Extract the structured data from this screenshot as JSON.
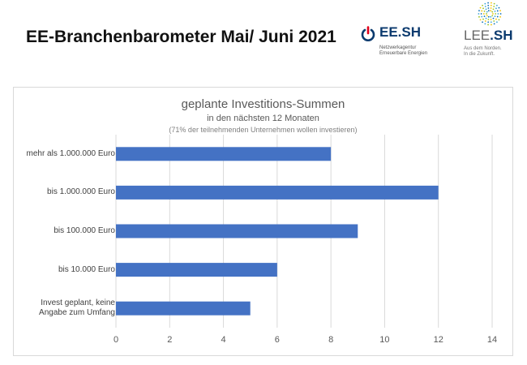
{
  "slide": {
    "title": "EE-Branchenbarometer Mai/ Juni 2021"
  },
  "logos": {
    "eesh": {
      "name": "EE.SH",
      "subtitle_line1": "Netzwerkagentur",
      "subtitle_line2": "Erneuerbare Energien"
    },
    "leesh": {
      "name_part1": "LEE",
      "name_part2": ".SH",
      "tagline_line1": "Aus dem Norden.",
      "tagline_line2": "In die Zukunft."
    }
  },
  "chart_data": {
    "type": "bar",
    "orientation": "horizontal",
    "title": "geplante Investitions-Summen",
    "subtitle": "in den nächsten 12 Monaten",
    "note": "(71% der teilnehmenden  Unternehmen  wollen  investieren)",
    "categories": [
      "mehr als 1.000.000 Euro",
      "bis 1.000.000 Euro",
      "bis 100.000 Euro",
      "bis 10.000 Euro",
      "Invest geplant, keine Angabe zum Umfang"
    ],
    "values": [
      8,
      12,
      9,
      6,
      5
    ],
    "xlim": [
      0,
      14
    ],
    "xticks": [
      "0",
      "2",
      "4",
      "6",
      "8",
      "10",
      "12",
      "14"
    ],
    "grid": true,
    "bar_color": "#4472c4"
  }
}
